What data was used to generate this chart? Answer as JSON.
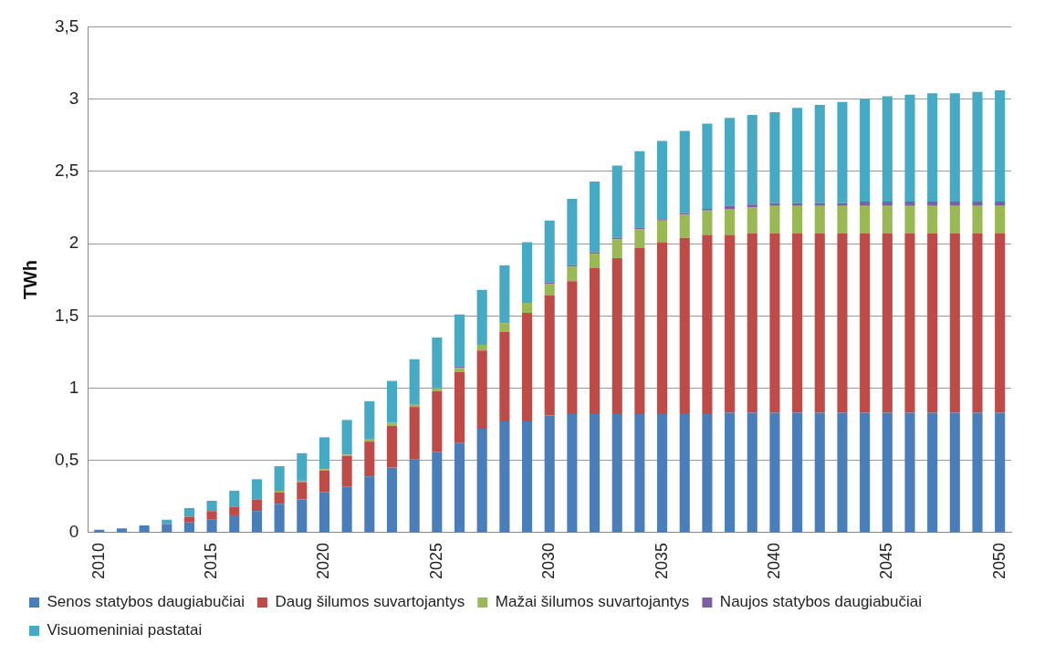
{
  "chart_data": {
    "type": "bar",
    "ylabel": "TWh",
    "stacked": true,
    "grid": "y",
    "legend": "bottom",
    "categories": [
      "2010",
      null,
      null,
      null,
      null,
      "2015",
      null,
      null,
      null,
      null,
      "2020",
      null,
      null,
      null,
      null,
      "2025",
      null,
      null,
      null,
      null,
      "2030",
      null,
      null,
      null,
      null,
      "2035",
      null,
      null,
      null,
      null,
      "2040",
      null,
      null,
      null,
      null,
      "2045",
      null,
      null,
      null,
      null,
      "2050"
    ],
    "ylim": [
      0,
      3.5
    ],
    "yticks": [
      0,
      {
        "value": 0.5,
        "label": "0,5"
      },
      1,
      {
        "value": 1.5,
        "label": "1,5"
      },
      2,
      {
        "value": 2.5,
        "label": "2,5"
      },
      3,
      {
        "value": 3.5,
        "label": "3,5"
      }
    ],
    "series": [
      {
        "name": "Senos statybos daugiabučiai",
        "color": "#4a7ebb",
        "values": [
          0.02,
          0.03,
          0.05,
          0.06,
          0.07,
          0.09,
          0.12,
          0.15,
          0.2,
          0.23,
          0.28,
          0.32,
          0.39,
          0.45,
          0.51,
          0.56,
          0.62,
          0.72,
          0.77,
          0.77,
          0.81,
          0.82,
          0.82,
          0.82,
          0.82,
          0.82,
          0.82,
          0.82,
          0.83,
          0.83,
          0.83,
          0.83,
          0.83,
          0.83,
          0.83,
          0.83,
          0.83,
          0.83,
          0.83,
          0.83,
          0.83
        ]
      },
      {
        "name": "Daug šilumos suvartojantys",
        "color": "#be4b48",
        "values": [
          0,
          0,
          0,
          0,
          0.04,
          0.06,
          0.06,
          0.08,
          0.08,
          0.12,
          0.15,
          0.21,
          0.24,
          0.29,
          0.36,
          0.42,
          0.49,
          0.54,
          0.62,
          0.75,
          0.83,
          0.92,
          1.01,
          1.08,
          1.15,
          1.19,
          1.22,
          1.24,
          1.23,
          1.24,
          1.24,
          1.24,
          1.24,
          1.24,
          1.24,
          1.24,
          1.24,
          1.24,
          1.24,
          1.24,
          1.24
        ]
      },
      {
        "name": "Mažai šilumos suvartojantys",
        "color": "#98b954",
        "values": [
          0,
          0,
          0,
          0,
          0,
          0,
          0,
          0,
          0.01,
          0.01,
          0.01,
          0.01,
          0.02,
          0.02,
          0.02,
          0.02,
          0.03,
          0.04,
          0.06,
          0.07,
          0.08,
          0.1,
          0.1,
          0.13,
          0.13,
          0.15,
          0.16,
          0.17,
          0.18,
          0.18,
          0.19,
          0.19,
          0.19,
          0.19,
          0.19,
          0.19,
          0.19,
          0.19,
          0.19,
          0.19,
          0.19
        ]
      },
      {
        "name": "Naujos statybos daugiabučiai",
        "color": "#7d60a0",
        "values": [
          0,
          0,
          0,
          0,
          0,
          0,
          0,
          0,
          0,
          0,
          0,
          0,
          0,
          0,
          0,
          0,
          0.01,
          0,
          0,
          0,
          0.01,
          0.01,
          0.01,
          0.01,
          0.01,
          0.01,
          0.01,
          0.01,
          0.02,
          0.02,
          0.02,
          0.02,
          0.02,
          0.02,
          0.03,
          0.03,
          0.03,
          0.03,
          0.03,
          0.03,
          0.03
        ]
      },
      {
        "name": "Visuomeniniai pastatai",
        "color": "#46aac5",
        "values": [
          0,
          0,
          0,
          0.03,
          0.06,
          0.07,
          0.11,
          0.14,
          0.17,
          0.19,
          0.22,
          0.24,
          0.26,
          0.29,
          0.31,
          0.35,
          0.36,
          0.38,
          0.4,
          0.42,
          0.43,
          0.46,
          0.49,
          0.5,
          0.53,
          0.54,
          0.57,
          0.59,
          0.61,
          0.62,
          0.63,
          0.66,
          0.68,
          0.7,
          0.71,
          0.73,
          0.74,
          0.75,
          0.75,
          0.76,
          0.77
        ]
      }
    ]
  }
}
